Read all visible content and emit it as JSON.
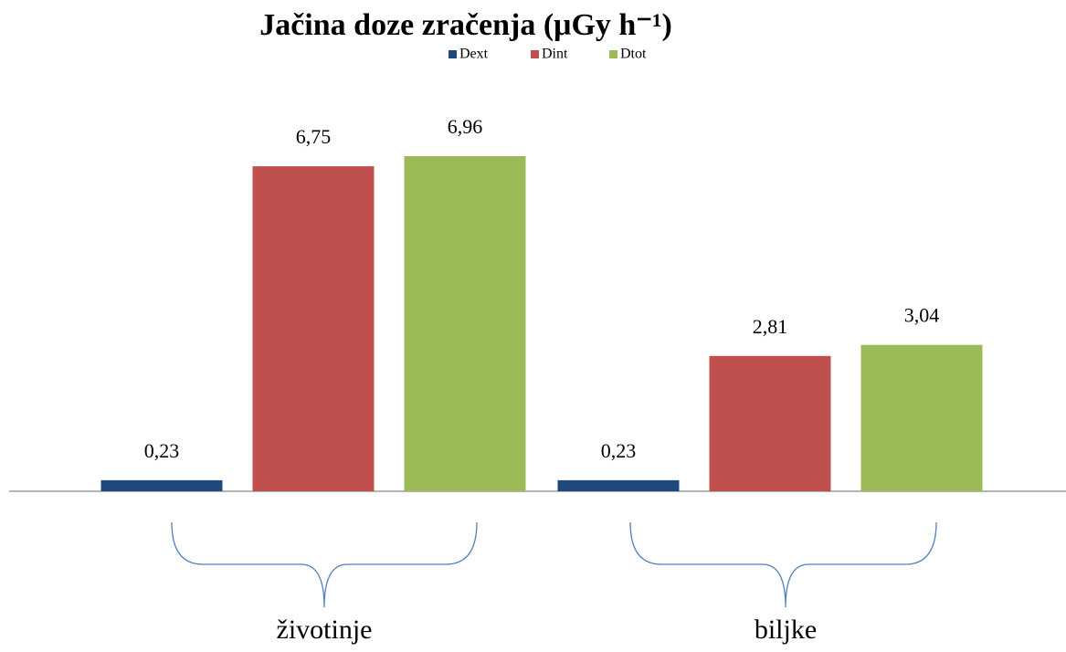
{
  "chart_data": {
    "type": "bar",
    "title": "Jačina doze zračenja (μGy h⁻¹)",
    "categories": [
      "životinje",
      "biljke"
    ],
    "series": [
      {
        "name": "Dext",
        "color": "#1f497d",
        "values": [
          0.23,
          0.23
        ],
        "value_labels": [
          "0,23",
          "0,23"
        ]
      },
      {
        "name": "Dint",
        "color": "#c0504d",
        "values": [
          6.75,
          2.81
        ],
        "value_labels": [
          "6,75",
          "2,81"
        ]
      },
      {
        "name": "Dtot",
        "color": "#9bbb59",
        "values": [
          6.96,
          3.04
        ],
        "value_labels": [
          "6,96",
          "3,04"
        ]
      }
    ],
    "legend": "top"
  }
}
